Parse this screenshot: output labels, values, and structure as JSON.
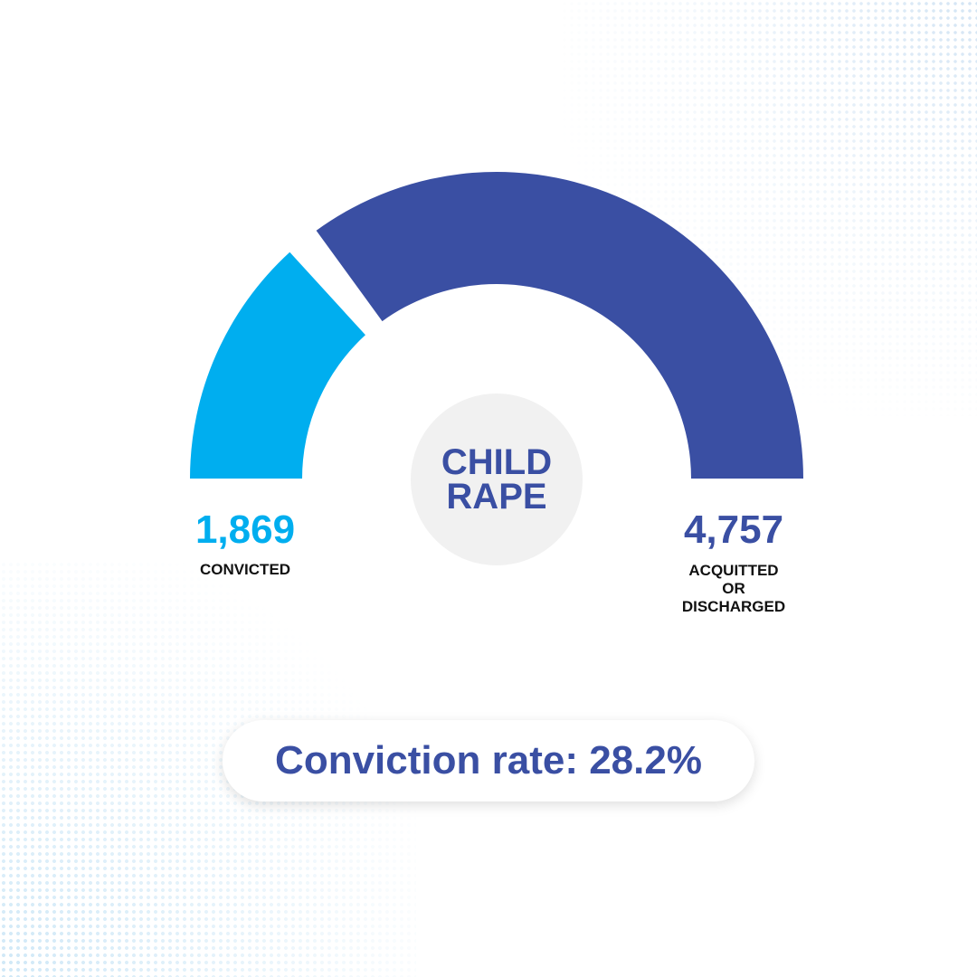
{
  "colors": {
    "convicted": "#00aeef",
    "acquitted": "#3a4fa3",
    "text_dark": "#111111",
    "center_bg": "#f1f1f1"
  },
  "center_title": "CHILD\nRAPE",
  "rate_text": "Conviction rate: 28.2%",
  "chart_data": {
    "type": "pie",
    "subtype": "semicircle-gauge",
    "title": "CHILD RAPE",
    "segments": [
      {
        "name": "CONVICTED",
        "value": 1869,
        "display": "1,869",
        "color": "#00aeef"
      },
      {
        "name": "ACQUITTED OR DISCHARGED",
        "value": 4757,
        "display": "4,757",
        "label_lines": "ACQUITTED\nOR\nDISCHARGED",
        "color": "#3a4fa3"
      }
    ],
    "annotation": "Conviction rate: 28.2%"
  }
}
